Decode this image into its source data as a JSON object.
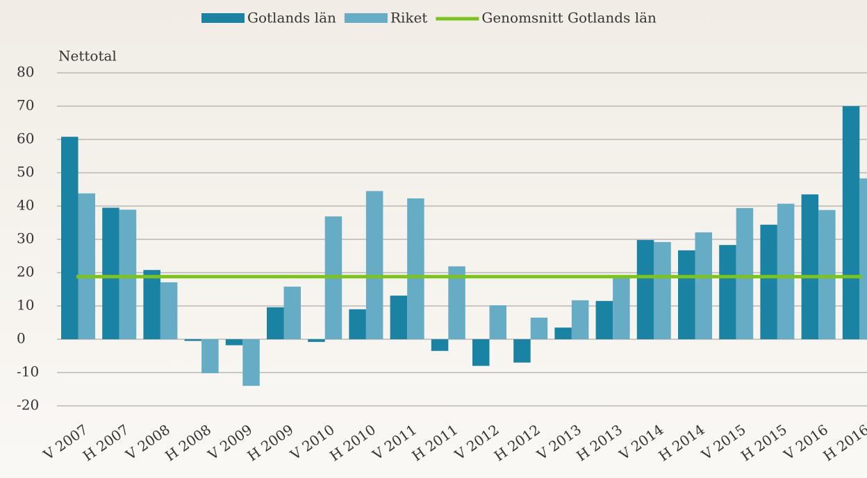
{
  "chart_data": {
    "type": "bar",
    "ylabel": "Nettotal",
    "categories": [
      "V 2007",
      "H 2007",
      "V 2008",
      "H 2008",
      "V 2009",
      "H 2009",
      "V 2010",
      "H 2010",
      "V 2011",
      "H 2011",
      "V 2012",
      "H 2012",
      "V 2013",
      "H 2013",
      "V 2014",
      "H 2014",
      "V 2015",
      "H 2015",
      "V 2016",
      "H 2016"
    ],
    "series": [
      {
        "name": "Gotlands län",
        "color": "#1a82a2",
        "values": [
          60.8,
          39.5,
          20.8,
          -0.5,
          -1.8,
          9.6,
          -0.8,
          9,
          13.1,
          -3.5,
          -8,
          -7,
          3.5,
          11.5,
          29.8,
          26.7,
          28.3,
          34.4,
          43.5,
          70
        ]
      },
      {
        "name": "Riket",
        "color": "#66acc5",
        "values": [
          43.8,
          38.9,
          17.1,
          -10.2,
          -14,
          15.8,
          36.9,
          44.5,
          42.3,
          21.9,
          10.2,
          6.5,
          11.7,
          18.8,
          29.2,
          32.1,
          39.4,
          40.7,
          38.8,
          48.3
        ]
      }
    ],
    "average": {
      "name": "Genomsnitt Gotlands län",
      "color": "#7dc21e",
      "value": 18.8
    },
    "ylim": [
      -20,
      80
    ],
    "yticks": [
      -20,
      -10,
      0,
      10,
      20,
      30,
      40,
      50,
      60,
      70,
      80
    ],
    "grid": true
  }
}
